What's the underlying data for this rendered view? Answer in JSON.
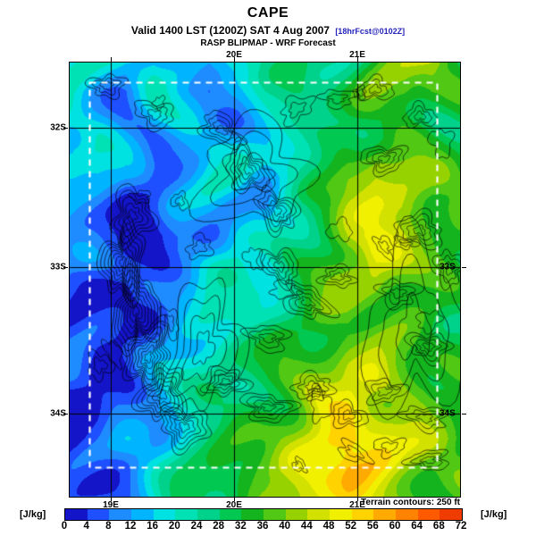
{
  "header": {
    "title": "CAPE",
    "valid_main": "Valid 1400 LST (1200Z) SAT 4 Aug 2007",
    "valid_tag": "[18hrFcst@0102Z]",
    "model_line": "RASP BLIPMAP - WRF Forecast"
  },
  "footer": {
    "terrain_note": "Terrain contours: 250 ft",
    "units_label": "[J/kg]"
  },
  "chart_data": {
    "type": "heatmap",
    "title": "CAPE",
    "subtitle": "Valid 1400 LST (1200Z) SAT 4 Aug 2007 [18hrFcst@0102Z]",
    "source": "RASP BLIPMAP - WRF Forecast",
    "units": "J/kg",
    "terrain_note": "Terrain contours: 250 ft",
    "overlay": "black terrain contour lines, white dashed model-domain rectangle, black lat/lon grid lines",
    "x_axis": {
      "bottom_ticks": [
        "19E",
        "20E",
        "21E"
      ],
      "top_ticks": [
        "20E",
        "21E"
      ]
    },
    "y_axis": {
      "left_ticks": [
        "32S",
        "33S",
        "34S"
      ],
      "right_ticks": [
        "33S",
        "34S"
      ]
    },
    "colorbar": {
      "ticks": [
        0,
        4,
        8,
        12,
        16,
        20,
        24,
        28,
        32,
        36,
        40,
        44,
        48,
        52,
        56,
        60,
        64,
        68,
        72
      ],
      "colors": [
        "#1414c8",
        "#1e50ff",
        "#1e8cff",
        "#00b4ff",
        "#00e1e1",
        "#00e1b4",
        "#00d28c",
        "#00c850",
        "#14b41e",
        "#50c814",
        "#96d200",
        "#d2e100",
        "#f0f000",
        "#ffd200",
        "#ffaa00",
        "#ff8200",
        "#ff5a00",
        "#f03c00"
      ]
    },
    "grid_estimate": {
      "note": "Approximate CAPE values (J/kg) read from the colour fill on a 15x16 grid, columns west-to-east (approx 18.6E-21.8E), rows north-to-south (approx 31.4S-34.7S)",
      "values": [
        [
          18,
          16,
          14,
          20,
          16,
          12,
          18,
          24,
          26,
          28,
          30,
          34,
          38,
          42,
          36
        ],
        [
          16,
          12,
          10,
          18,
          12,
          8,
          14,
          22,
          26,
          28,
          32,
          36,
          40,
          38,
          32
        ],
        [
          18,
          16,
          14,
          16,
          14,
          10,
          12,
          18,
          24,
          26,
          30,
          32,
          34,
          32,
          30
        ],
        [
          20,
          18,
          12,
          10,
          16,
          18,
          14,
          16,
          22,
          28,
          34,
          38,
          36,
          32,
          34
        ],
        [
          16,
          14,
          8,
          6,
          12,
          16,
          18,
          14,
          20,
          30,
          40,
          44,
          42,
          38,
          36
        ],
        [
          12,
          10,
          6,
          4,
          10,
          14,
          16,
          12,
          22,
          32,
          44,
          48,
          46,
          40,
          38
        ],
        [
          10,
          8,
          4,
          2,
          8,
          12,
          18,
          16,
          24,
          34,
          46,
          50,
          44,
          38,
          36
        ],
        [
          8,
          6,
          2,
          4,
          10,
          16,
          20,
          18,
          26,
          34,
          42,
          46,
          40,
          36,
          34
        ],
        [
          8,
          4,
          2,
          6,
          12,
          18,
          22,
          24,
          28,
          34,
          38,
          42,
          38,
          34,
          32
        ],
        [
          6,
          4,
          4,
          8,
          14,
          20,
          24,
          26,
          30,
          36,
          40,
          38,
          36,
          34,
          32
        ],
        [
          6,
          2,
          4,
          10,
          16,
          22,
          26,
          28,
          32,
          38,
          42,
          40,
          36,
          34,
          32
        ],
        [
          4,
          2,
          6,
          12,
          18,
          24,
          28,
          32,
          36,
          42,
          46,
          44,
          40,
          36,
          34
        ],
        [
          4,
          4,
          8,
          14,
          20,
          26,
          30,
          34,
          38,
          46,
          52,
          48,
          42,
          38,
          36
        ],
        [
          2,
          4,
          10,
          14,
          22,
          28,
          32,
          36,
          42,
          50,
          58,
          52,
          44,
          40,
          38
        ],
        [
          2,
          6,
          10,
          16,
          24,
          30,
          34,
          38,
          44,
          52,
          56,
          50,
          44,
          40,
          36
        ],
        [
          4,
          8,
          12,
          18,
          26,
          30,
          36,
          40,
          46,
          50,
          52,
          46,
          42,
          38,
          36
        ]
      ]
    }
  }
}
